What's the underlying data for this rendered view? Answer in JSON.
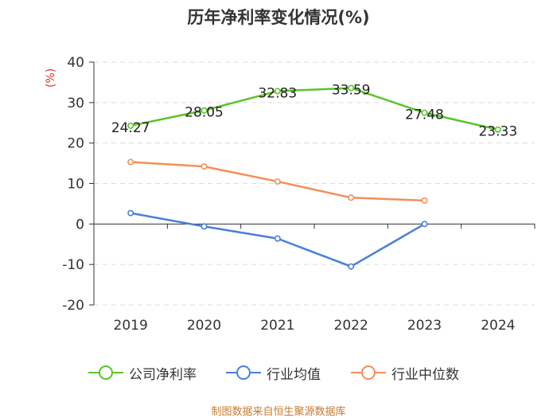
{
  "chart_data": {
    "type": "line",
    "title": "历年净利率变化情况(%)",
    "ylabel": "(%)",
    "categories": [
      "2019",
      "2020",
      "2021",
      "2022",
      "2023",
      "2024"
    ],
    "ylim": [
      -20,
      40
    ],
    "yticks": [
      "40",
      "30",
      "20",
      "10",
      "0",
      "-10",
      "-20"
    ],
    "series": [
      {
        "name": "公司净利率",
        "color": "#5bc42a",
        "values": [
          24.27,
          28.05,
          32.83,
          33.59,
          27.48,
          23.33
        ],
        "labels": [
          "24.27",
          "28.05",
          "32.83",
          "33.59",
          "27.48",
          "23.33"
        ]
      },
      {
        "name": "行业均值",
        "color": "#4a7fd8",
        "values": [
          2.7,
          -0.6,
          -3.6,
          -10.5,
          0.0,
          null
        ]
      },
      {
        "name": "行业中位数",
        "color": "#f28f5a",
        "values": [
          15.3,
          14.2,
          10.5,
          6.5,
          5.8,
          null
        ]
      }
    ]
  },
  "legend": [
    "公司净利率",
    "行业均值",
    "行业中位数"
  ],
  "source": "制图数据来自恒生聚源数据库"
}
